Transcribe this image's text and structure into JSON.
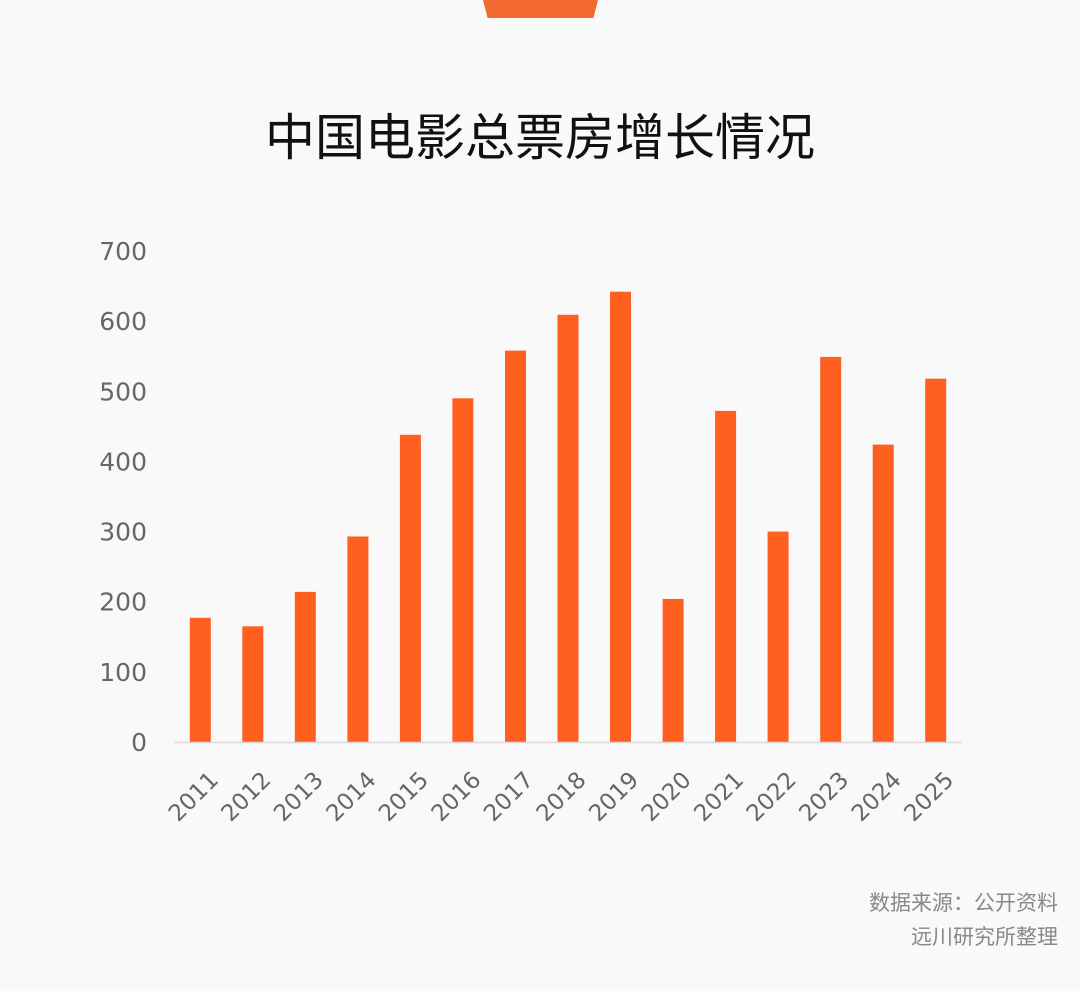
{
  "header": {
    "title": "中国电影总票房增长情况"
  },
  "source": {
    "line1": "数据来源：公开资料",
    "line2": "远川研究所整理"
  },
  "colors": {
    "bar": "#ff5f1f",
    "accent": "#f26a2e",
    "axis_text": "#666666",
    "baseline": "#d9d9d9"
  },
  "chart_data": {
    "type": "bar",
    "title": "中国电影总票房增长情况",
    "xlabel": "",
    "ylabel": "",
    "categories": [
      "2011",
      "2012",
      "2013",
      "2014",
      "2015",
      "2016",
      "2017",
      "2018",
      "2019",
      "2020",
      "2021",
      "2022",
      "2023",
      "2024",
      "2025"
    ],
    "values": [
      177,
      165,
      214,
      293,
      438,
      490,
      558,
      609,
      642,
      204,
      472,
      300,
      549,
      424,
      518
    ],
    "ylim": [
      0,
      700
    ],
    "yticks": [
      0,
      100,
      200,
      300,
      400,
      500,
      600,
      700
    ],
    "grid": false,
    "legend": "none"
  }
}
